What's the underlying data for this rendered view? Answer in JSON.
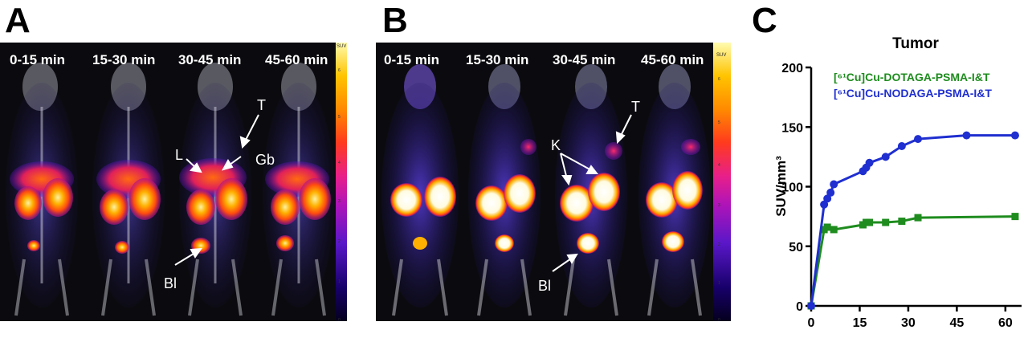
{
  "panels": {
    "a": {
      "letter": "A",
      "times": [
        "0-15 min",
        "15-30 min",
        "30-45 min",
        "45-60 min"
      ],
      "annotations": {
        "t": "T",
        "l": "L",
        "gb": "Gb",
        "bl": "Bl"
      },
      "colorbar": {
        "label": "SUV",
        "ticks": [
          "6",
          "5",
          "4",
          "3",
          "2",
          "1",
          "0"
        ]
      }
    },
    "b": {
      "letter": "B",
      "times": [
        "0-15 min",
        "15-30 min",
        "30-45 min",
        "45-60 min"
      ],
      "annotations": {
        "t": "T",
        "k": "K",
        "bl": "Bl"
      },
      "colorbar": {
        "label": "SUV",
        "ticks": [
          "6",
          "5",
          "4",
          "3",
          "2",
          "1",
          "0"
        ]
      }
    },
    "c": {
      "letter": "C"
    }
  },
  "chart_data": {
    "type": "line",
    "title": "Tumor",
    "xlabel": "",
    "ylabel": "SUV/mm³",
    "xlim": [
      0,
      65
    ],
    "ylim": [
      0,
      200
    ],
    "xticks": [
      0,
      15,
      30,
      45,
      60
    ],
    "yticks": [
      0,
      50,
      100,
      150,
      200
    ],
    "series": [
      {
        "name": "[⁶¹Cu]Cu-DOTAGA-PSMA-I&T",
        "color": "#1e8c1e",
        "marker": "square",
        "x": [
          0,
          4,
          5,
          7,
          16,
          17,
          18,
          23,
          28,
          33,
          63
        ],
        "y": [
          0,
          64,
          66,
          64,
          68,
          70,
          70,
          70,
          71,
          74,
          75
        ]
      },
      {
        "name": "[⁶¹Cu]Cu-NODAGA-PSMA-I&T",
        "color": "#1f2fd0",
        "marker": "circle",
        "x": [
          0,
          4,
          5,
          6,
          7,
          16,
          17,
          18,
          23,
          28,
          33,
          48,
          63
        ],
        "y": [
          0,
          85,
          90,
          95,
          102,
          113,
          116,
          120,
          125,
          134,
          140,
          143,
          143
        ]
      }
    ]
  }
}
